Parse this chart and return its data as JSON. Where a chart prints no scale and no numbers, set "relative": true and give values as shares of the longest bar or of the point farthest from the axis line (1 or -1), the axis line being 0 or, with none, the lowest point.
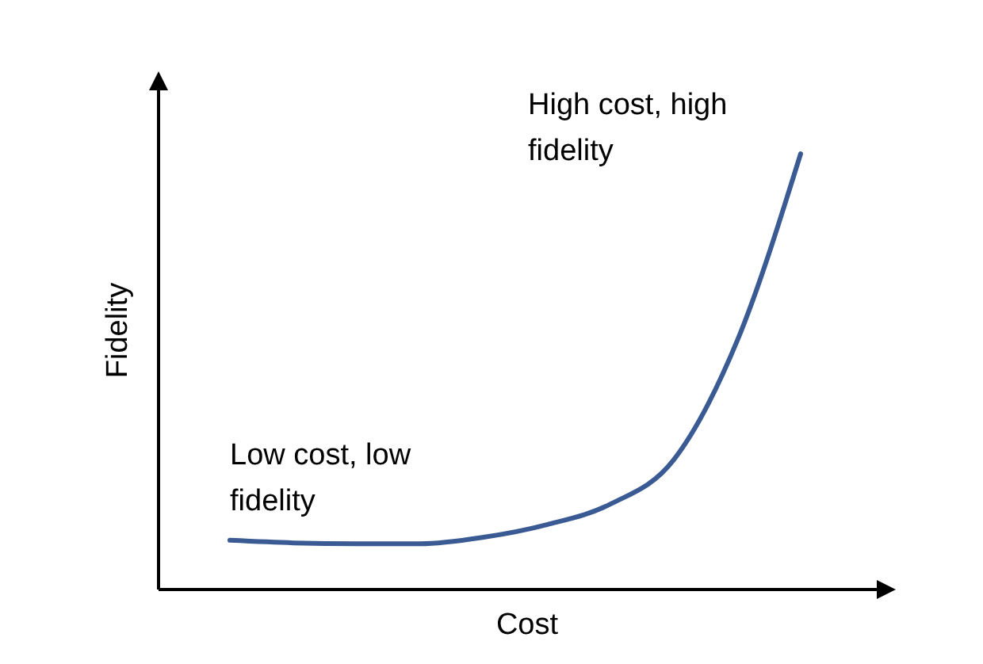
{
  "chart_data": {
    "type": "line",
    "relative": true,
    "xlabel": "Cost",
    "ylabel": "Fidelity",
    "categories": [
      null,
      null,
      null,
      null,
      null,
      null,
      null,
      null,
      null,
      null
    ],
    "series": [
      {
        "color": "#3a5a94",
        "values": [
          0.113,
          0.107,
          0.105,
          0.105,
          0.12,
          0.149,
          0.196,
          0.298,
          0.571,
          1
        ]
      }
    ],
    "annotations": [
      "Low cost, low fidelity",
      "High cost, high fidelity"
    ],
    "tick_labels": false
  }
}
